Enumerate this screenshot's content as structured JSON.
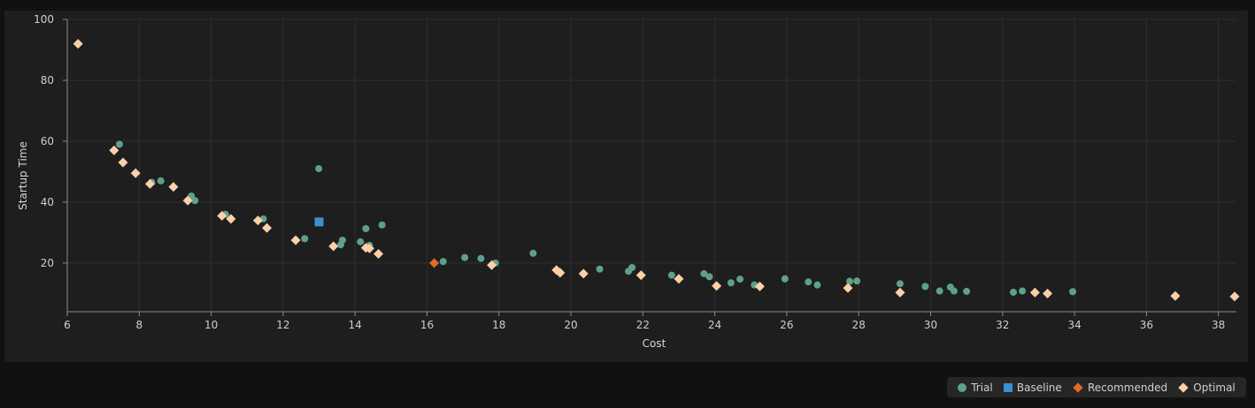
{
  "chart_data": {
    "type": "scatter",
    "xlabel": "Cost",
    "ylabel": "Startup Time",
    "xlim": [
      6,
      38.5
    ],
    "ylim": [
      4,
      100
    ],
    "xticks": [
      6,
      8,
      10,
      12,
      14,
      16,
      18,
      20,
      22,
      24,
      26,
      28,
      30,
      32,
      34,
      36,
      38
    ],
    "yticks": [
      20,
      40,
      60,
      80,
      100
    ],
    "grid": true,
    "legend_position": "bottom-right",
    "series": [
      {
        "name": "Trial",
        "marker": "circle",
        "color": "#5fa08a",
        "points": [
          [
            7.45,
            59
          ],
          [
            8.35,
            46.5
          ],
          [
            8.6,
            47
          ],
          [
            9.45,
            42
          ],
          [
            9.55,
            40.5
          ],
          [
            10.4,
            36
          ],
          [
            11.45,
            34.5
          ],
          [
            12.6,
            28
          ],
          [
            12.99,
            51
          ],
          [
            13.6,
            26
          ],
          [
            13.65,
            27.5
          ],
          [
            14.15,
            27
          ],
          [
            14.3,
            31.3
          ],
          [
            14.4,
            25.8
          ],
          [
            14.75,
            32.5
          ],
          [
            16.45,
            20.5
          ],
          [
            17.05,
            21.8
          ],
          [
            17.5,
            21.5
          ],
          [
            17.9,
            20
          ],
          [
            18.95,
            23.2
          ],
          [
            20.8,
            18
          ],
          [
            21.6,
            17.3
          ],
          [
            21.7,
            18.5
          ],
          [
            22.8,
            16
          ],
          [
            23.7,
            16.5
          ],
          [
            23.85,
            15.5
          ],
          [
            24.45,
            13.5
          ],
          [
            24.7,
            14.7
          ],
          [
            25.1,
            12.8
          ],
          [
            25.95,
            14.8
          ],
          [
            26.6,
            13.8
          ],
          [
            26.85,
            12.8
          ],
          [
            27.75,
            14
          ],
          [
            27.95,
            14.1
          ],
          [
            29.15,
            13.2
          ],
          [
            29.85,
            12.3
          ],
          [
            30.25,
            10.8
          ],
          [
            30.55,
            12.1
          ],
          [
            30.65,
            10.8
          ],
          [
            31.0,
            10.7
          ],
          [
            32.3,
            10.4
          ],
          [
            32.55,
            10.8
          ],
          [
            33.95,
            10.6
          ]
        ]
      },
      {
        "name": "Baseline",
        "marker": "square",
        "color": "#3a8fd0",
        "points": [
          [
            13.0,
            33.5
          ]
        ]
      },
      {
        "name": "Recommended",
        "marker": "diamond",
        "color": "#e06a28",
        "points": [
          [
            16.2,
            20
          ]
        ]
      },
      {
        "name": "Optimal",
        "marker": "diamond",
        "color": "#fdd0a8",
        "points": [
          [
            6.3,
            92
          ],
          [
            7.3,
            57
          ],
          [
            7.55,
            53
          ],
          [
            7.9,
            49.5
          ],
          [
            8.3,
            46
          ],
          [
            8.95,
            45
          ],
          [
            9.35,
            40.5
          ],
          [
            10.3,
            35.5
          ],
          [
            10.55,
            34.5
          ],
          [
            11.3,
            34
          ],
          [
            11.55,
            31.5
          ],
          [
            12.35,
            27.5
          ],
          [
            13.4,
            25.5
          ],
          [
            14.3,
            25
          ],
          [
            14.4,
            24.8
          ],
          [
            14.65,
            23
          ],
          [
            17.8,
            19.3
          ],
          [
            19.6,
            17.7
          ],
          [
            19.7,
            16.8
          ],
          [
            20.35,
            16.5
          ],
          [
            21.95,
            16
          ],
          [
            23.0,
            14.8
          ],
          [
            24.05,
            12.5
          ],
          [
            25.25,
            12.3
          ],
          [
            27.7,
            11.8
          ],
          [
            29.15,
            10.3
          ],
          [
            32.9,
            10.3
          ],
          [
            33.25,
            10
          ],
          [
            36.8,
            9.2
          ],
          [
            38.45,
            9
          ]
        ]
      }
    ]
  },
  "legend": {
    "items": [
      {
        "label": "Trial",
        "shape": "circle",
        "color": "#5fa08a"
      },
      {
        "label": "Baseline",
        "shape": "square",
        "color": "#3a8fd0"
      },
      {
        "label": "Recommended",
        "shape": "diamond",
        "color": "#e06a28"
      },
      {
        "label": "Optimal",
        "shape": "diamond",
        "color": "#fdd0a8"
      }
    ]
  }
}
